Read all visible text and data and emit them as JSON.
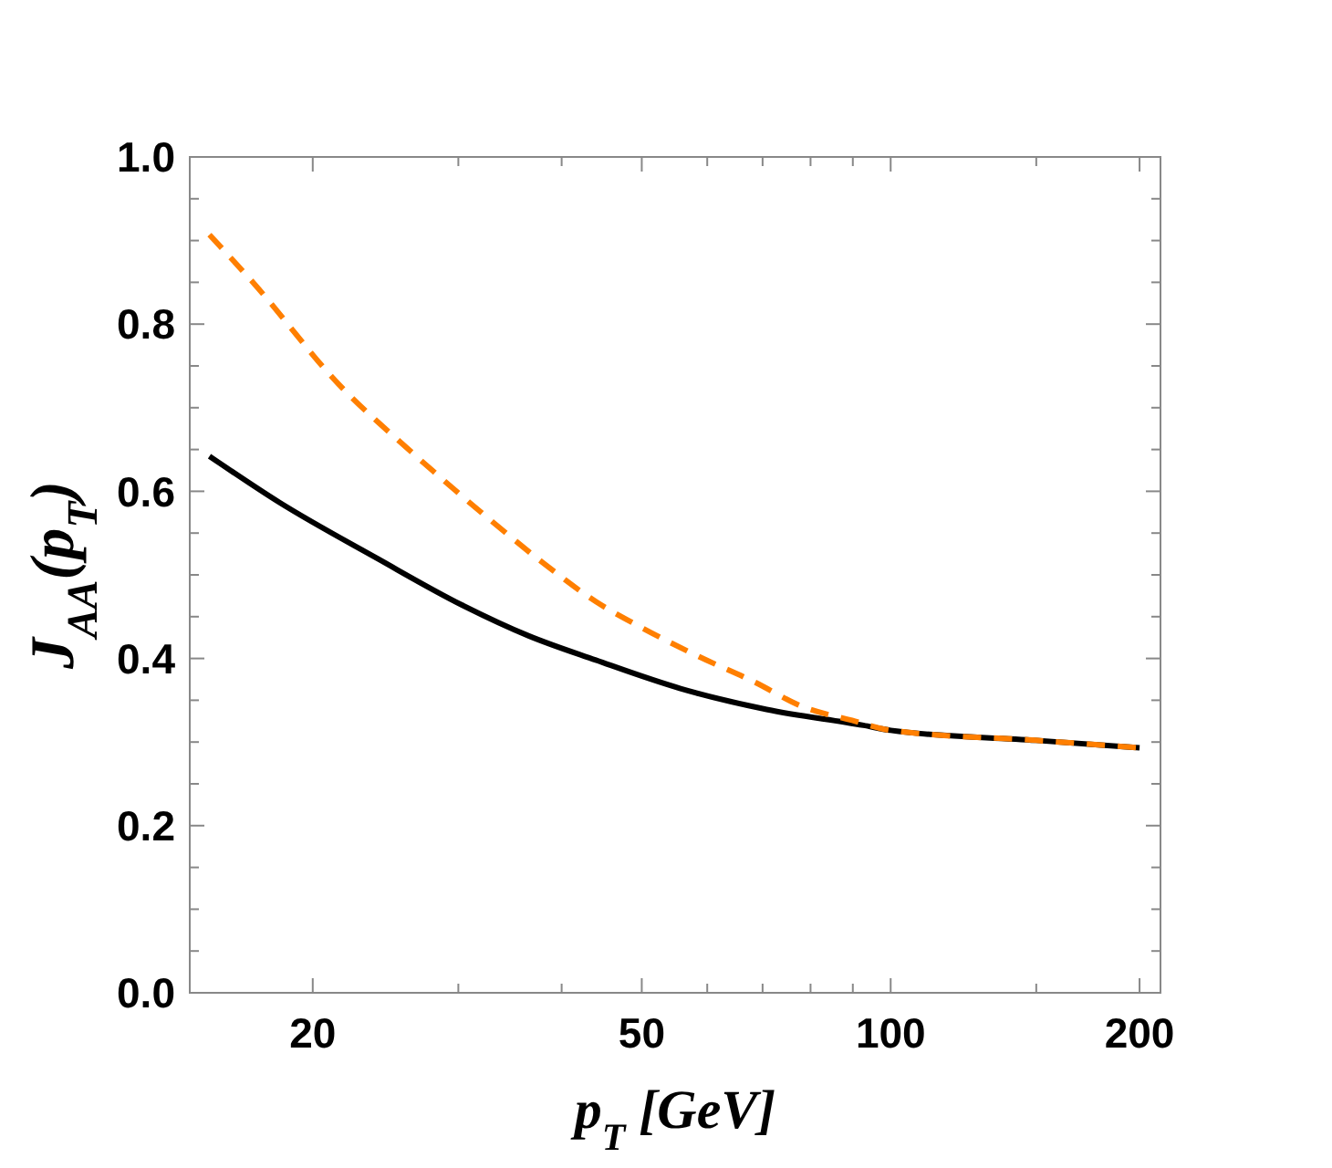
{
  "chart_data": {
    "type": "line",
    "xlabel": "p$_{T}$ [GeV]",
    "ylabel": "J$_{AA}$(p$_{T}$)",
    "log": "x",
    "xlim": [
      14.2,
      212
    ],
    "ylim": [
      0,
      1
    ],
    "xticks": [
      20,
      {
        "value": 30,
        "label": null
      },
      {
        "value": 40,
        "label": null
      },
      50,
      {
        "value": 60,
        "label": null
      },
      {
        "value": 70,
        "label": null
      },
      {
        "value": 80,
        "label": null
      },
      {
        "value": 90,
        "label": null
      },
      100,
      {
        "value": 150,
        "label": null
      },
      200
    ],
    "yticks": [
      {
        "value": 0,
        "label": "0.0"
      },
      {
        "value": 0.05,
        "label": null
      },
      {
        "value": 0.1,
        "label": null
      },
      {
        "value": 0.15,
        "label": null
      },
      0.2,
      {
        "value": 0.25,
        "label": null
      },
      {
        "value": 0.3,
        "label": null
      },
      {
        "value": 0.35,
        "label": null
      },
      0.4,
      {
        "value": 0.45,
        "label": null
      },
      {
        "value": 0.5,
        "label": null
      },
      {
        "value": 0.55,
        "label": null
      },
      0.6,
      {
        "value": 0.65,
        "label": null
      },
      {
        "value": 0.7,
        "label": null
      },
      {
        "value": 0.75,
        "label": null
      },
      0.8,
      {
        "value": 0.85,
        "label": null
      },
      {
        "value": 0.9,
        "label": null
      },
      {
        "value": 0.95,
        "label": null
      },
      {
        "value": 1,
        "label": "1.0"
      }
    ],
    "grid": false,
    "series": [
      {
        "color": "#000000",
        "line_style": "solid",
        "x": [
          15,
          18.2,
          23.9,
          30.3,
          36.5,
          44,
          55.7,
          70.8,
          92.7,
          100,
          150,
          200
        ],
        "values": [
          0.642,
          0.587,
          0.52,
          0.464,
          0.427,
          0.398,
          0.364,
          0.339,
          0.32,
          0.314,
          0.302,
          0.293
        ]
      },
      {
        "color": "#ff7f00",
        "line_style": "dashed",
        "x": [
          15,
          17,
          21.5,
          26.4,
          32.4,
          37.8,
          44,
          50.4,
          58.7,
          68.4,
          78.4,
          89.8,
          100,
          150,
          200
        ],
        "values": [
          0.907,
          0.848,
          0.728,
          0.646,
          0.57,
          0.516,
          0.468,
          0.435,
          0.402,
          0.372,
          0.342,
          0.326,
          0.314,
          0.302,
          0.293
        ]
      }
    ]
  }
}
